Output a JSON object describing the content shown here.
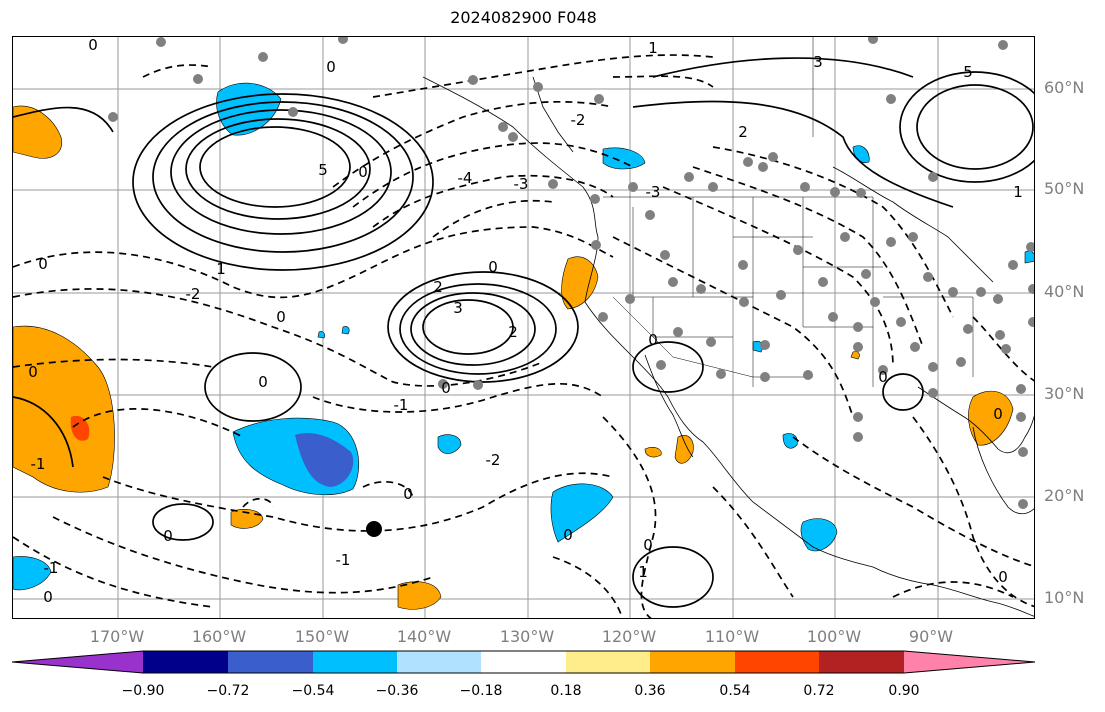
{
  "title": "2024082900 F048",
  "latitude_labels": [
    "60°N",
    "50°N",
    "40°N",
    "30°N",
    "20°N",
    "10°N"
  ],
  "longitude_labels": [
    "170°W",
    "160°W",
    "150°W",
    "140°W",
    "130°W",
    "120°W",
    "110°W",
    "100°W",
    "90°W"
  ],
  "contour_labels": [
    "0",
    "1",
    "2",
    "3",
    "4",
    "5",
    "0",
    "-1",
    "-2",
    "-3",
    "-4",
    "-5"
  ],
  "colorbar": {
    "ticks": [
      "−0.90",
      "−0.72",
      "−0.54",
      "−0.36",
      "−0.18",
      "0.18",
      "0.36",
      "0.54",
      "0.72",
      "0.90"
    ],
    "colors": [
      "#9932cc",
      "#00008b",
      "#3a5fcd",
      "#00bfff",
      "#b0e2ff",
      "#ffffff",
      "#ffec8b",
      "#ffa500",
      "#ff4500",
      "#b22222",
      "#ff82ab"
    ]
  },
  "colors": {
    "grid": "#999999",
    "station": "#808080",
    "positive_fill": "#ffa500",
    "negative_fill": "#00bfff"
  }
}
